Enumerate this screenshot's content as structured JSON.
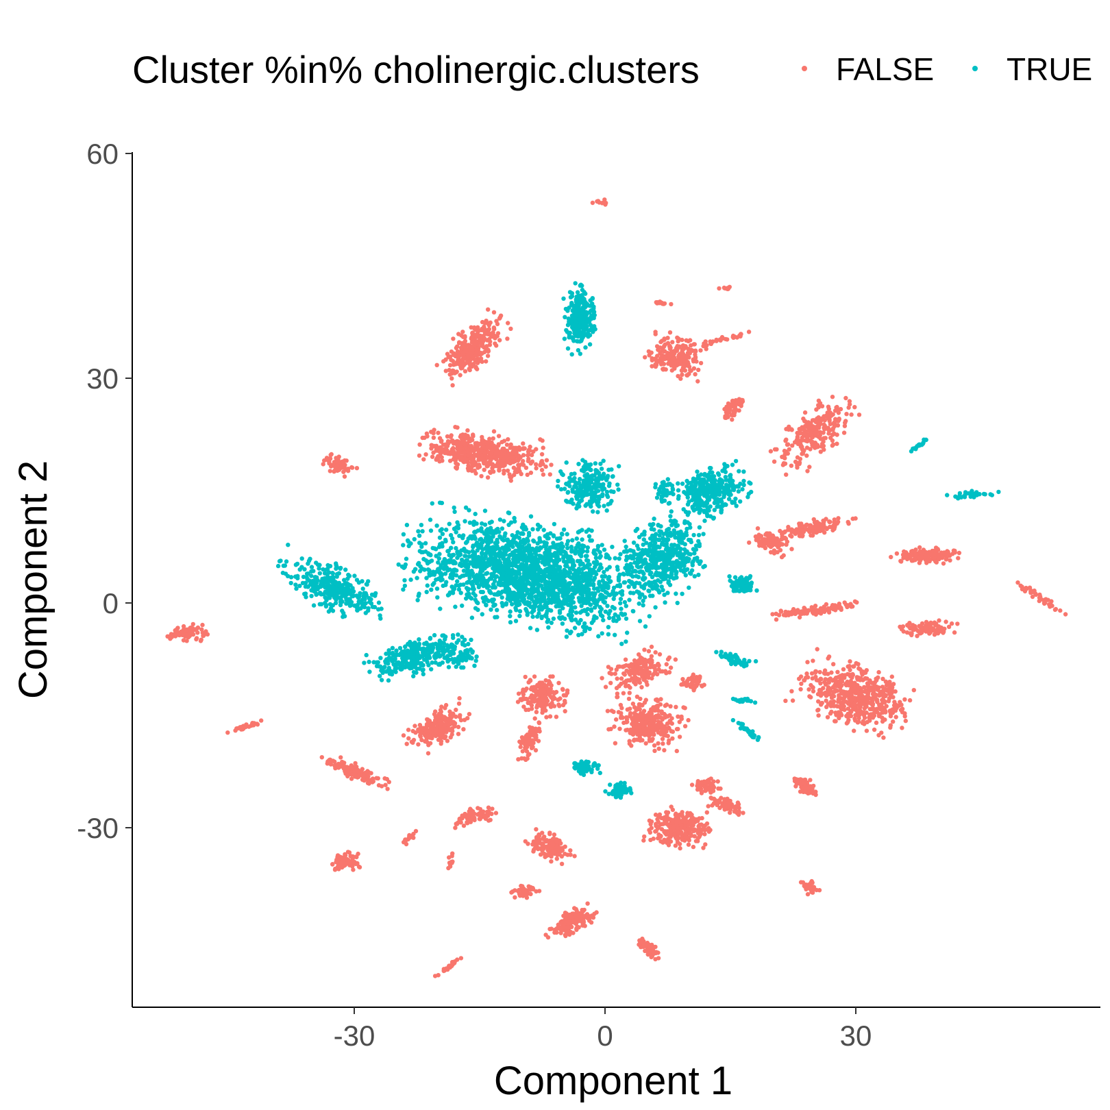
{
  "chart_data": {
    "type": "scatter",
    "title": "",
    "xlabel": "Component 1",
    "ylabel": "Component 2",
    "xlim": [
      -56,
      59
    ],
    "ylim": [
      -54,
      60
    ],
    "x_ticks": [
      -30,
      0,
      30
    ],
    "y_ticks": [
      -30,
      0,
      30,
      60
    ],
    "x_tick_labels": [
      "-30",
      "0",
      "30"
    ],
    "y_tick_labels": [
      "-30",
      "0",
      "30",
      "60"
    ],
    "grid": false,
    "legend": {
      "title": "Cluster %in% cholinergic.clusters",
      "placement": "top",
      "entries": [
        "FALSE",
        "TRUE"
      ]
    },
    "series": [
      {
        "name": "FALSE",
        "color": "#F8766D",
        "clusters": [
          {
            "cx": -0.5,
            "cy": 53.5,
            "rx": 0.3,
            "ry": 1.2,
            "angle": 90,
            "n": 10
          },
          {
            "cx": 14.5,
            "cy": 42,
            "rx": 1,
            "ry": 0.3,
            "angle": 0,
            "n": 8
          },
          {
            "cx": 6.8,
            "cy": 40,
            "rx": 0.3,
            "ry": 1.2,
            "angle": 90,
            "n": 12
          },
          {
            "cx": -16,
            "cy": 34,
            "rx": 4.5,
            "ry": 2,
            "angle": 50,
            "n": 280
          },
          {
            "cx": 8.5,
            "cy": 33,
            "rx": 2.5,
            "ry": 3,
            "angle": 80,
            "n": 200
          },
          {
            "cx": 14.5,
            "cy": 35.3,
            "rx": 3.5,
            "ry": 0.3,
            "angle": 15,
            "n": 30
          },
          {
            "cx": 15.3,
            "cy": 26,
            "rx": 2,
            "ry": 0.8,
            "angle": 55,
            "n": 50
          },
          {
            "cx": 25,
            "cy": 22.5,
            "rx": 5,
            "ry": 2.5,
            "angle": 45,
            "n": 240
          },
          {
            "cx": -14.5,
            "cy": 20,
            "rx": 7,
            "ry": 2.5,
            "angle": -10,
            "n": 520
          },
          {
            "cx": -32,
            "cy": 18.5,
            "rx": 2,
            "ry": 1,
            "angle": -25,
            "n": 70
          },
          {
            "cx": 24.5,
            "cy": 10,
            "rx": 4.5,
            "ry": 0.9,
            "angle": 12,
            "n": 120
          },
          {
            "cx": 20,
            "cy": 8,
            "rx": 2.5,
            "ry": 1.3,
            "angle": -20,
            "n": 80
          },
          {
            "cx": 38.5,
            "cy": 6.3,
            "rx": 3.5,
            "ry": 0.9,
            "angle": 0,
            "n": 150
          },
          {
            "cx": 52,
            "cy": 0.8,
            "rx": 3.5,
            "ry": 0.4,
            "angle": -35,
            "n": 40
          },
          {
            "cx": 25,
            "cy": -1,
            "rx": 5,
            "ry": 0.6,
            "angle": 8,
            "n": 110
          },
          {
            "cx": 38.5,
            "cy": -3.3,
            "rx": 3,
            "ry": 0.9,
            "angle": 0,
            "n": 100
          },
          {
            "cx": -50,
            "cy": -4,
            "rx": 1.2,
            "ry": 2.2,
            "angle": 90,
            "n": 80
          },
          {
            "cx": 4,
            "cy": -9,
            "rx": 4,
            "ry": 2,
            "angle": 30,
            "n": 160
          },
          {
            "cx": 10.5,
            "cy": -10.5,
            "rx": 1.5,
            "ry": 1,
            "angle": -30,
            "n": 40
          },
          {
            "cx": -7.5,
            "cy": -12.5,
            "rx": 2.6,
            "ry": 2.2,
            "angle": 0,
            "n": 170
          },
          {
            "cx": 5,
            "cy": -16,
            "rx": 3,
            "ry": 4,
            "angle": 85,
            "n": 300
          },
          {
            "cx": 30,
            "cy": -12.5,
            "rx": 6,
            "ry": 3.5,
            "angle": -25,
            "n": 520
          },
          {
            "cx": -20,
            "cy": -16.5,
            "rx": 3.5,
            "ry": 2,
            "angle": 35,
            "n": 220
          },
          {
            "cx": -9,
            "cy": -18.5,
            "rx": 2.5,
            "ry": 1,
            "angle": 70,
            "n": 80
          },
          {
            "cx": -43,
            "cy": -16.5,
            "rx": 2,
            "ry": 0.3,
            "angle": 22,
            "n": 25
          },
          {
            "cx": -30,
            "cy": -22.5,
            "rx": 4,
            "ry": 0.9,
            "angle": -25,
            "n": 110
          },
          {
            "cx": 24,
            "cy": -24.5,
            "rx": 1.5,
            "ry": 0.8,
            "angle": -45,
            "n": 70
          },
          {
            "cx": 12,
            "cy": -24.5,
            "rx": 1.5,
            "ry": 1,
            "angle": 0,
            "n": 50
          },
          {
            "cx": 14.5,
            "cy": -27,
            "rx": 2.5,
            "ry": 0.7,
            "angle": -20,
            "n": 60
          },
          {
            "cx": 9,
            "cy": -30,
            "rx": 2.2,
            "ry": 3.5,
            "angle": 85,
            "n": 260
          },
          {
            "cx": -15.5,
            "cy": -28.5,
            "rx": 2.5,
            "ry": 1,
            "angle": 15,
            "n": 70
          },
          {
            "cx": -23.5,
            "cy": -31.5,
            "rx": 1.2,
            "ry": 0.3,
            "angle": 45,
            "n": 15
          },
          {
            "cx": -6.5,
            "cy": -32.5,
            "rx": 2.5,
            "ry": 1.5,
            "angle": -30,
            "n": 120
          },
          {
            "cx": -31,
            "cy": -34.5,
            "rx": 1.5,
            "ry": 1,
            "angle": 10,
            "n": 80
          },
          {
            "cx": -18.5,
            "cy": -34.5,
            "rx": 0.9,
            "ry": 0.3,
            "angle": 75,
            "n": 10
          },
          {
            "cx": -9.5,
            "cy": -38.5,
            "rx": 1.6,
            "ry": 0.7,
            "angle": 20,
            "n": 40
          },
          {
            "cx": 24.5,
            "cy": -38,
            "rx": 1,
            "ry": 0.8,
            "angle": 0,
            "n": 35
          },
          {
            "cx": -4,
            "cy": -42.5,
            "rx": 3,
            "ry": 1.3,
            "angle": 30,
            "n": 130
          },
          {
            "cx": 5,
            "cy": -46,
            "rx": 1.9,
            "ry": 0.6,
            "angle": -40,
            "n": 50
          },
          {
            "cx": -18.5,
            "cy": -48.5,
            "rx": 2,
            "ry": 0.3,
            "angle": 40,
            "n": 25
          }
        ]
      },
      {
        "name": "TRUE",
        "color": "#00BFC4",
        "clusters": [
          {
            "cx": -3,
            "cy": 38,
            "rx": 4,
            "ry": 1.8,
            "angle": 85,
            "n": 260
          },
          {
            "cx": 37.5,
            "cy": 21,
            "rx": 1.6,
            "ry": 0.3,
            "angle": 40,
            "n": 20
          },
          {
            "cx": 44,
            "cy": 14.5,
            "rx": 2.5,
            "ry": 0.4,
            "angle": 5,
            "n": 30
          },
          {
            "cx": -2,
            "cy": 15.5,
            "rx": 3,
            "ry": 3,
            "angle": 0,
            "n": 220
          },
          {
            "cx": 12.5,
            "cy": 15,
            "rx": 4,
            "ry": 3,
            "angle": 20,
            "n": 330
          },
          {
            "cx": 7,
            "cy": 15,
            "rx": 1.2,
            "ry": 1.5,
            "angle": 0,
            "n": 40
          },
          {
            "cx": -9,
            "cy": 4,
            "rx": 13,
            "ry": 6,
            "angle": -12,
            "n": 1900
          },
          {
            "cx": 7,
            "cy": 6,
            "rx": 5,
            "ry": 4,
            "angle": 60,
            "n": 430
          },
          {
            "cx": -32.5,
            "cy": 2,
            "rx": 6,
            "ry": 2.5,
            "angle": -25,
            "n": 320
          },
          {
            "cx": 16.5,
            "cy": 2.5,
            "rx": 1.5,
            "ry": 1.2,
            "angle": 0,
            "n": 90
          },
          {
            "cx": -22,
            "cy": -7,
            "rx": 5.5,
            "ry": 2,
            "angle": 15,
            "n": 300
          },
          {
            "cx": -17,
            "cy": -7.5,
            "rx": 2,
            "ry": 1.3,
            "angle": 0,
            "n": 40
          },
          {
            "cx": 15.5,
            "cy": -7.5,
            "rx": 2,
            "ry": 0.6,
            "angle": -20,
            "n": 50
          },
          {
            "cx": 16.5,
            "cy": -13,
            "rx": 1.6,
            "ry": 0.3,
            "angle": -5,
            "n": 20
          },
          {
            "cx": 17,
            "cy": -17,
            "rx": 2,
            "ry": 0.4,
            "angle": -40,
            "n": 35
          },
          {
            "cx": -2.5,
            "cy": -22,
            "rx": 1.8,
            "ry": 0.9,
            "angle": 10,
            "n": 60
          },
          {
            "cx": 1.5,
            "cy": -25,
            "rx": 0.9,
            "ry": 1.5,
            "angle": 90,
            "n": 60
          }
        ]
      }
    ]
  }
}
